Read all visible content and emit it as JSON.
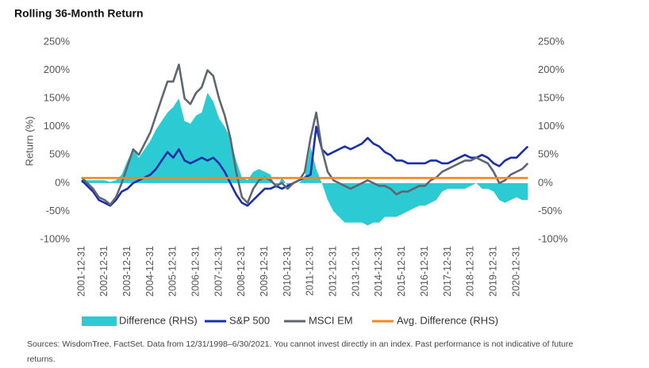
{
  "chart_data": {
    "type": "line",
    "title": "Rolling 36-Month Return",
    "ylabel": "Return (%)",
    "x": [
      "2001-12-31",
      "2002-03-31",
      "2002-06-30",
      "2002-09-30",
      "2002-12-31",
      "2003-03-31",
      "2003-06-30",
      "2003-09-30",
      "2003-12-31",
      "2004-03-31",
      "2004-06-30",
      "2004-09-30",
      "2004-12-31",
      "2005-03-31",
      "2005-06-30",
      "2005-09-30",
      "2005-12-31",
      "2006-03-31",
      "2006-06-30",
      "2006-09-30",
      "2006-12-31",
      "2007-03-31",
      "2007-06-30",
      "2007-09-30",
      "2007-12-31",
      "2008-03-31",
      "2008-06-30",
      "2008-09-30",
      "2008-12-31",
      "2009-03-31",
      "2009-06-30",
      "2009-09-30",
      "2009-12-31",
      "2010-03-31",
      "2010-06-30",
      "2010-09-30",
      "2010-12-31",
      "2011-03-31",
      "2011-06-30",
      "2011-09-30",
      "2011-12-31",
      "2012-03-31",
      "2012-06-30",
      "2012-09-30",
      "2012-12-31",
      "2013-03-31",
      "2013-06-30",
      "2013-09-30",
      "2013-12-31",
      "2014-03-31",
      "2014-06-30",
      "2014-09-30",
      "2014-12-31",
      "2015-03-31",
      "2015-06-30",
      "2015-09-30",
      "2015-12-31",
      "2016-03-31",
      "2016-06-30",
      "2016-09-30",
      "2016-12-31",
      "2017-03-31",
      "2017-06-30",
      "2017-09-30",
      "2017-12-31",
      "2018-03-31",
      "2018-06-30",
      "2018-09-30",
      "2018-12-31",
      "2019-03-31",
      "2019-06-30",
      "2019-09-30",
      "2019-12-31",
      "2020-03-31",
      "2020-06-30",
      "2020-09-30",
      "2020-12-31",
      "2021-03-31",
      "2021-06-30"
    ],
    "series": [
      {
        "name": "Difference (RHS)",
        "type": "area",
        "axis": "y2",
        "color": "#2ccbd3",
        "values": [
          5,
          5,
          5,
          5,
          5,
          2,
          5,
          15,
          40,
          60,
          45,
          60,
          75,
          95,
          110,
          125,
          135,
          150,
          110,
          105,
          120,
          125,
          160,
          145,
          115,
          100,
          80,
          40,
          10,
          5,
          20,
          25,
          20,
          15,
          -10,
          10,
          -5,
          0,
          0,
          10,
          65,
          25,
          0,
          -30,
          -50,
          -60,
          -70,
          -70,
          -70,
          -70,
          -75,
          -70,
          -70,
          -60,
          -60,
          -60,
          -55,
          -50,
          -45,
          -40,
          -40,
          -35,
          -30,
          -15,
          -10,
          -10,
          -10,
          -10,
          -5,
          0,
          -10,
          -10,
          -15,
          -30,
          -35,
          -30,
          -25,
          -30,
          -30
        ]
      },
      {
        "name": "S&P 500",
        "type": "line",
        "color": "#1a2fa8",
        "values": [
          5,
          -5,
          -15,
          -30,
          -35,
          -40,
          -30,
          -15,
          -10,
          0,
          5,
          10,
          15,
          25,
          40,
          55,
          45,
          60,
          40,
          35,
          40,
          45,
          40,
          45,
          35,
          20,
          0,
          -20,
          -35,
          -40,
          -30,
          -20,
          -10,
          -10,
          -5,
          -10,
          -5,
          0,
          5,
          10,
          15,
          100,
          60,
          50,
          55,
          60,
          65,
          60,
          65,
          70,
          80,
          70,
          65,
          55,
          50,
          40,
          40,
          35,
          35,
          35,
          35,
          40,
          40,
          35,
          35,
          40,
          45,
          50,
          45,
          45,
          50,
          45,
          35,
          30,
          40,
          45,
          45,
          55,
          65
        ]
      },
      {
        "name": "MSCI EM",
        "type": "line",
        "color": "#5f6670",
        "values": [
          10,
          0,
          -10,
          -25,
          -30,
          -38,
          -25,
          0,
          30,
          60,
          50,
          70,
          90,
          120,
          150,
          180,
          180,
          210,
          150,
          140,
          160,
          170,
          200,
          190,
          150,
          120,
          80,
          20,
          -25,
          -35,
          -10,
          5,
          10,
          5,
          -5,
          0,
          -10,
          0,
          5,
          20,
          80,
          125,
          60,
          20,
          5,
          0,
          -5,
          -10,
          -5,
          0,
          5,
          0,
          -5,
          -5,
          -10,
          -20,
          -15,
          -15,
          -10,
          -5,
          -5,
          5,
          10,
          20,
          25,
          30,
          35,
          40,
          40,
          45,
          40,
          35,
          20,
          0,
          5,
          15,
          20,
          25,
          35
        ]
      },
      {
        "name": "Avg. Difference (RHS)",
        "type": "hline",
        "axis": "y2",
        "color": "#f08a1c",
        "value": 9
      }
    ],
    "xticks": [
      "2001-12-31",
      "2002-12-31",
      "2003-12-31",
      "2004-12-31",
      "2005-12-31",
      "2006-12-31",
      "2007-12-31",
      "2008-12-31",
      "2009-12-31",
      "2010-12-31",
      "2011-12-31",
      "2012-12-31",
      "2013-12-31",
      "2014-12-31",
      "2015-12-31",
      "2016-12-31",
      "2017-12-31",
      "2018-12-31",
      "2019-12-31",
      "2020-12-31"
    ],
    "ylim": [
      -100,
      250
    ],
    "yticks": [
      {
        "value": -100,
        "label": "-100%"
      },
      {
        "value": -50,
        "label": "-50%"
      },
      {
        "value": 0,
        "label": "0%"
      },
      {
        "value": 50,
        "label": "50%"
      },
      {
        "value": 100,
        "label": "100%"
      },
      {
        "value": 150,
        "label": "150%"
      },
      {
        "value": 200,
        "label": "200%"
      },
      {
        "value": 250,
        "label": "250%"
      }
    ],
    "y2lim": [
      -100,
      250
    ],
    "y2ticks": [
      {
        "value": -100,
        "label": "-100%"
      },
      {
        "value": -50,
        "label": "-50%"
      },
      {
        "value": 0,
        "label": "0%"
      },
      {
        "value": 50,
        "label": "50%"
      },
      {
        "value": 100,
        "label": "100%"
      },
      {
        "value": 150,
        "label": "150%"
      },
      {
        "value": 200,
        "label": "200%"
      },
      {
        "value": 250,
        "label": "250%"
      }
    ],
    "grid": false,
    "legend": "bottom",
    "source": "Sources: WisdomTree, FactSet. Data from 12/31/1998–6/30/2021. You cannot invest directly in an index. Past performance is not indicative of future returns."
  }
}
